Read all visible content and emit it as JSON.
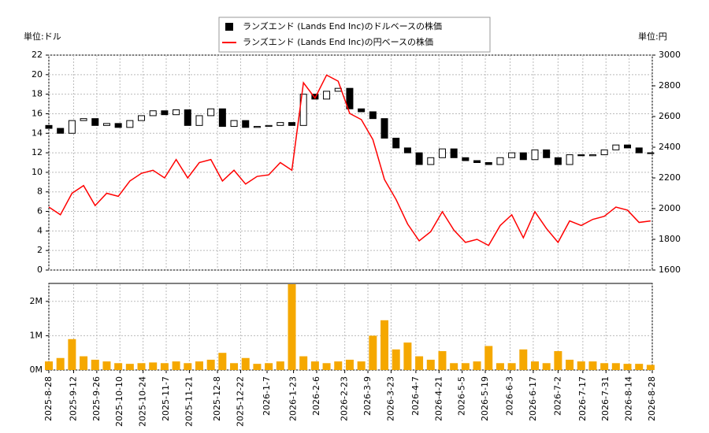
{
  "chart_data": [
    {
      "type": "candlestick",
      "ylabel": "単位:ドル",
      "y2label": "単位:円",
      "x": [
        "2025-8-28",
        "2025-9-4",
        "2025-9-11",
        "2025-9-18",
        "2025-9-25",
        "2025-10-2",
        "2025-10-9",
        "2025-10-16",
        "2025-10-23",
        "2025-10-30",
        "2025-11-6",
        "2025-11-13",
        "2025-11-20",
        "2025-11-27",
        "2025-12-4",
        "2025-12-11",
        "2025-12-18",
        "2025-12-25",
        "2026-1-1",
        "2026-1-8",
        "2026-1-15",
        "2026-1-22",
        "2026-1-29",
        "2026-2-5",
        "2026-2-12",
        "2026-2-19",
        "2026-2-26",
        "2026-3-5",
        "2026-3-12",
        "2026-3-19",
        "2026-3-26",
        "2026-4-2",
        "2026-4-9",
        "2026-4-16",
        "2026-4-23",
        "2026-4-30",
        "2026-5-7",
        "2026-5-14",
        "2026-5-21",
        "2026-5-28",
        "2026-6-4",
        "2026-6-11",
        "2026-6-18",
        "2026-6-25",
        "2026-7-2",
        "2026-7-9",
        "2026-7-16",
        "2026-7-23",
        "2026-7-30",
        "2026-8-6",
        "2026-8-13",
        "2026-8-20",
        "2026-8-27"
      ],
      "series": [
        {
          "name": "ランズエンド (Lands End Inc)のドルベースの株価",
          "color": "#000000",
          "open": [
            14.8,
            14.5,
            14.0,
            15.3,
            15.5,
            14.8,
            15.0,
            14.6,
            15.3,
            15.8,
            16.3,
            15.9,
            16.4,
            14.8,
            15.8,
            16.5,
            14.7,
            15.3,
            14.6,
            14.7,
            14.8,
            15.1,
            14.8,
            18.0,
            17.5,
            18.3,
            18.6,
            16.5,
            16.2,
            15.5,
            13.5,
            12.5,
            12.0,
            10.8,
            11.5,
            12.4,
            11.5,
            11.2,
            11.0,
            10.8,
            11.5,
            12.0,
            11.3,
            12.3,
            11.5,
            10.8,
            11.8,
            11.7,
            11.8,
            12.3,
            12.8,
            12.5,
            12.0
          ],
          "close": [
            14.5,
            14.0,
            15.3,
            15.5,
            14.8,
            15.0,
            14.6,
            15.3,
            15.8,
            16.3,
            15.9,
            16.4,
            14.8,
            15.8,
            16.5,
            14.7,
            15.3,
            14.6,
            14.7,
            14.8,
            15.1,
            14.8,
            18.0,
            17.5,
            18.3,
            18.6,
            16.5,
            16.2,
            15.5,
            13.5,
            12.5,
            12.0,
            10.8,
            11.5,
            12.4,
            11.5,
            11.2,
            11.0,
            10.8,
            11.5,
            12.0,
            11.3,
            12.3,
            11.5,
            10.8,
            11.8,
            11.7,
            11.8,
            12.3,
            12.8,
            12.5,
            12.0,
            12.0
          ]
        },
        {
          "name": "ランズエンド (Lands End Inc)の円ベースの株価",
          "color": "#ff0000",
          "axis": "y2",
          "values": [
            2010,
            1960,
            2100,
            2150,
            2020,
            2100,
            2080,
            2180,
            2230,
            2250,
            2200,
            2320,
            2200,
            2300,
            2320,
            2180,
            2250,
            2160,
            2210,
            2220,
            2300,
            2250,
            2820,
            2720,
            2870,
            2830,
            2620,
            2580,
            2450,
            2190,
            2060,
            1900,
            1790,
            1850,
            1980,
            1860,
            1780,
            1800,
            1760,
            1890,
            1960,
            1810,
            1980,
            1870,
            1780,
            1920,
            1890,
            1930,
            1950,
            2010,
            1990,
            1910,
            1920
          ]
        }
      ],
      "xlim": [
        "2025-8-28",
        "2026-8-28"
      ],
      "ylim": [
        0,
        22
      ],
      "yticks": [
        0,
        2,
        4,
        6,
        8,
        10,
        12,
        14,
        16,
        18,
        20,
        22
      ],
      "y2lim": [
        1600,
        3000
      ],
      "y2ticks": [
        1600,
        1800,
        2000,
        2200,
        2400,
        2600,
        2800,
        3000
      ],
      "grid": true
    },
    {
      "type": "bar",
      "x": [
        "2025-8-28",
        "2025-9-4",
        "2025-9-11",
        "2025-9-18",
        "2025-9-25",
        "2025-10-2",
        "2025-10-9",
        "2025-10-16",
        "2025-10-23",
        "2025-10-30",
        "2025-11-6",
        "2025-11-13",
        "2025-11-20",
        "2025-11-27",
        "2025-12-4",
        "2025-12-11",
        "2025-12-18",
        "2025-12-25",
        "2026-1-1",
        "2026-1-8",
        "2026-1-15",
        "2026-1-22",
        "2026-1-29",
        "2026-2-5",
        "2026-2-12",
        "2026-2-19",
        "2026-2-26",
        "2026-3-5",
        "2026-3-12",
        "2026-3-19",
        "2026-3-26",
        "2026-4-2",
        "2026-4-9",
        "2026-4-16",
        "2026-4-23",
        "2026-4-30",
        "2026-5-7",
        "2026-5-14",
        "2026-5-21",
        "2026-5-28",
        "2026-6-4",
        "2026-6-11",
        "2026-6-18",
        "2026-6-25",
        "2026-7-2",
        "2026-7-9",
        "2026-7-16",
        "2026-7-23",
        "2026-7-30",
        "2026-8-6",
        "2026-8-13",
        "2026-8-20",
        "2026-8-27"
      ],
      "values": [
        250000,
        350000,
        900000,
        400000,
        300000,
        250000,
        200000,
        180000,
        200000,
        220000,
        200000,
        250000,
        200000,
        250000,
        300000,
        500000,
        200000,
        350000,
        180000,
        200000,
        250000,
        2500000,
        400000,
        250000,
        200000,
        250000,
        300000,
        250000,
        1000000,
        1450000,
        600000,
        800000,
        400000,
        300000,
        550000,
        200000,
        200000,
        250000,
        700000,
        200000,
        200000,
        600000,
        250000,
        200000,
        550000,
        300000,
        250000,
        250000,
        200000,
        200000,
        180000,
        180000,
        150000
      ],
      "color": "#f5a800",
      "xlim": [
        "2025-8-28",
        "2026-8-28"
      ],
      "ylim": [
        0,
        2500000
      ],
      "yticks": [
        {
          "value": 0,
          "label": "0M"
        },
        {
          "value": 1000000,
          "label": "1M"
        },
        {
          "value": 2000000,
          "label": "2M"
        }
      ],
      "xticks": [
        "2025-8-28",
        "2025-9-12",
        "2025-9-26",
        "2025-10-10",
        "2025-10-24",
        "2025-11-7",
        "2025-11-21",
        "2025-12-8",
        "2025-12-22",
        "2026-1-7",
        "2026-1-23",
        "2026-2-6",
        "2026-2-23",
        "2026-3-9",
        "2026-3-23",
        "2026-4-7",
        "2026-4-21",
        "2026-5-5",
        "2026-5-19",
        "2026-6-3",
        "2026-6-17",
        "2026-7-2",
        "2026-7-17",
        "2026-7-31",
        "2026-8-14",
        "2026-8-28"
      ],
      "grid": true
    }
  ]
}
